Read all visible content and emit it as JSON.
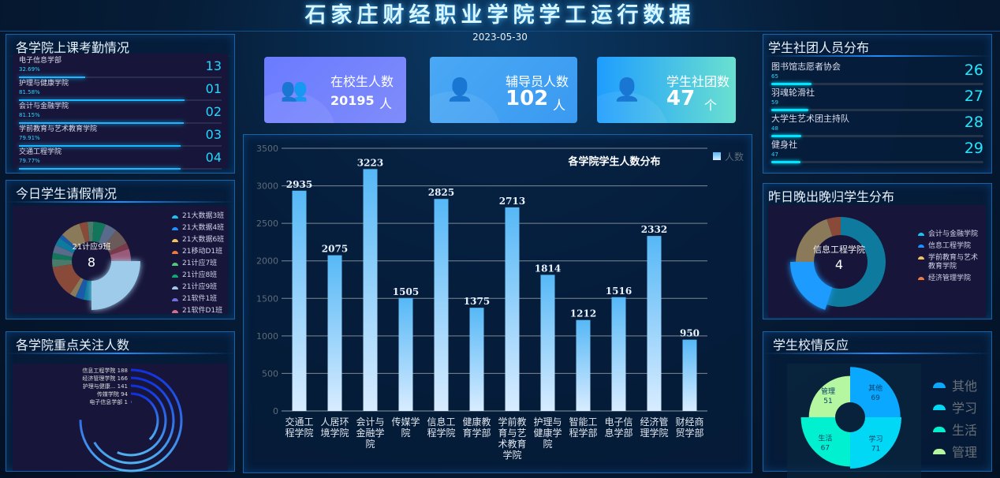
{
  "header": {
    "title": "石家庄财经职业学院学工运行数据",
    "date": "2023-05-30"
  },
  "attendance": {
    "title": "各学院上课考勤情况",
    "items": [
      {
        "name": "电子信息学部",
        "percent": "32.69%",
        "rank": "13",
        "value": 32.69
      },
      {
        "name": "护理与健康学院",
        "percent": "81.58%",
        "rank": "01",
        "value": 81.58
      },
      {
        "name": "会计与金融学院",
        "percent": "81.15%",
        "rank": "02",
        "value": 81.15
      },
      {
        "name": "学前教育与艺术教育学院",
        "percent": "79.91%",
        "rank": "03",
        "value": 79.91
      },
      {
        "name": "交通工程学院",
        "percent": "79.77%",
        "rank": "04",
        "value": 79.77
      }
    ]
  },
  "leave": {
    "title": "今日学生请假情况",
    "center_label": "21计应9班",
    "center_value": "8",
    "legend": [
      {
        "name": "21大数据3班",
        "color": "#17c5f0"
      },
      {
        "name": "21大数据4班",
        "color": "#1e90ff"
      },
      {
        "name": "21大数据6班",
        "color": "#f5c15a"
      },
      {
        "name": "21移动D1班",
        "color": "#f07a3c"
      },
      {
        "name": "21计应7班",
        "color": "#58c878"
      },
      {
        "name": "21计应8班",
        "color": "#12a678"
      },
      {
        "name": "21计应9班",
        "color": "#9ecbea"
      },
      {
        "name": "21软件1班",
        "color": "#7070e0"
      },
      {
        "name": "21软件D1班",
        "color": "#d07090"
      }
    ]
  },
  "focus": {
    "title": "各学院重点关注人数",
    "items": [
      {
        "name": "信息工程学院",
        "value": 188
      },
      {
        "name": "经济管理学院",
        "value": 166
      },
      {
        "name": "护理与健康...",
        "value": 141
      },
      {
        "name": "传媒学院",
        "value": 94
      },
      {
        "name": "电子信息学部",
        "value": 1
      }
    ]
  },
  "cards": [
    {
      "label": "在校生人数",
      "value": "20195",
      "unit": "人",
      "icon": "people-group-icon"
    },
    {
      "label": "辅导员人数",
      "value": "102",
      "unit": "人",
      "icon": "user-up-icon"
    },
    {
      "label": "学生社团数",
      "value": "47",
      "unit": "个",
      "icon": "user-down-icon"
    }
  ],
  "chart_data": {
    "type": "bar",
    "title": "各学院学生人数分布",
    "legend": [
      "人数"
    ],
    "legend_position": "top-right",
    "categories": [
      "交通工程学院",
      "人居环境学院",
      "会计与金融学院",
      "传媒学院",
      "信息工程学院",
      "健康教育学部",
      "学前教育与艺术教育学院",
      "护理与健康学院",
      "智能工程学部",
      "电子信息学部",
      "经济管理学院",
      "财经商贸学部"
    ],
    "values": [
      2935,
      2075,
      3223,
      1505,
      2825,
      1375,
      2713,
      1814,
      1212,
      1516,
      2332,
      950
    ],
    "ylim": [
      0,
      3500
    ],
    "yticks": [
      "0",
      "500",
      "1000",
      "1500",
      "2000",
      "2500",
      "3000",
      "3500"
    ],
    "grid": true
  },
  "clubs": {
    "title": "学生社团人员分布",
    "items": [
      {
        "name": "图书馆志愿者协会",
        "value": "65",
        "rank": "26"
      },
      {
        "name": "羽魂轮滑社",
        "value": "59",
        "rank": "27"
      },
      {
        "name": "大学生艺术团主持队",
        "value": "48",
        "rank": "28"
      },
      {
        "name": "健身社",
        "value": "47",
        "rank": "29"
      }
    ]
  },
  "late": {
    "title": "昨日晚出晚归学生分布",
    "center_label": "信息工程学院",
    "center_value": "4",
    "items": [
      {
        "name": "会计与金融学院",
        "value": 11,
        "color": "#0e7b9e"
      },
      {
        "name": "信息工程学院",
        "value": 4,
        "color": "#1e9bff"
      },
      {
        "name": "学前教育与艺术教育学院",
        "value": 4,
        "color": "#8a7a5a"
      },
      {
        "name": "经济管理学院",
        "value": 1,
        "color": "#8a4a3a"
      }
    ],
    "legend_colors": [
      "#17c5f0",
      "#1e90ff",
      "#f5c15a",
      "#f07a3c"
    ]
  },
  "feedback": {
    "title": "学生校情反应",
    "items": [
      {
        "name": "其他",
        "value": "69",
        "color": "#0aa8ff"
      },
      {
        "name": "学习",
        "value": "71",
        "color": "#00d8f5"
      },
      {
        "name": "生活",
        "value": "67",
        "color": "#00f0d0"
      },
      {
        "name": "管理",
        "value": "51",
        "color": "#b4f7a0"
      }
    ]
  }
}
